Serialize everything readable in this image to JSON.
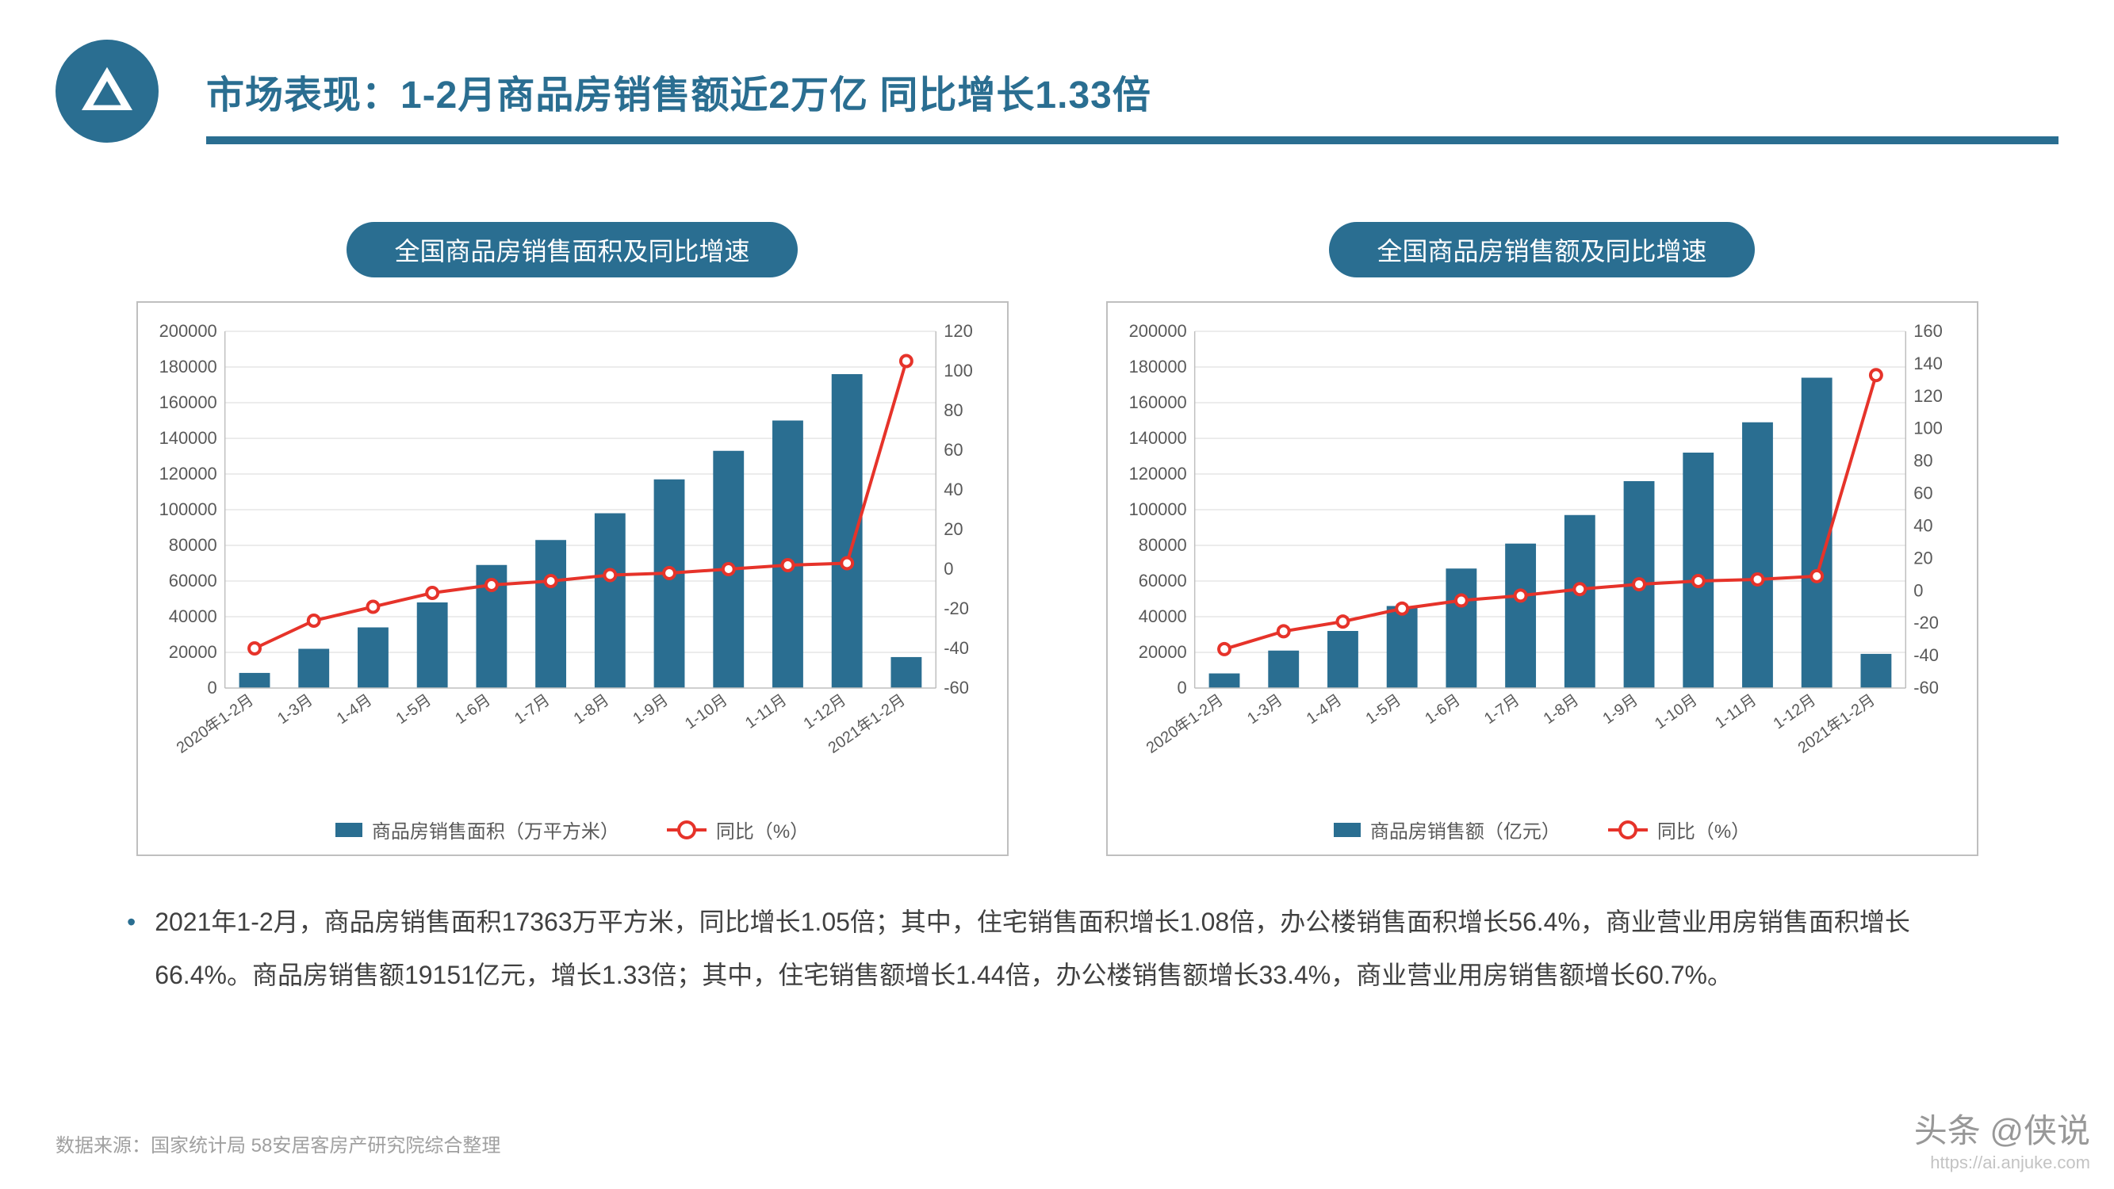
{
  "colors": {
    "brand": "#2a6e91",
    "accent_red": "#e6332a",
    "grid": "#d9d9d9",
    "axis": "#bfbfbf",
    "tick_text": "#595959",
    "body_text": "#404040",
    "footer_text": "#a0a0a0",
    "background": "#ffffff"
  },
  "title": "市场表现：1-2月商品房销售额近2万亿 同比增长1.33倍",
  "chart_left": {
    "title": "全国商品房销售面积及同比增速",
    "type": "bar+line",
    "x_labels": [
      "2020年1-2月",
      "1-3月",
      "1-4月",
      "1-5月",
      "1-6月",
      "1-7月",
      "1-8月",
      "1-9月",
      "1-10月",
      "1-11月",
      "1-12月",
      "2021年1-2月"
    ],
    "bars": [
      8475,
      22000,
      34000,
      48000,
      69000,
      83000,
      98000,
      117000,
      133000,
      150000,
      176000,
      17363
    ],
    "line": [
      -40,
      -26,
      -19,
      -12,
      -8,
      -6,
      -3,
      -2,
      0,
      2,
      3,
      105
    ],
    "bar_color": "#2a6e91",
    "line_color": "#e6332a",
    "marker_fill": "#ffffff",
    "y_left": {
      "min": 0,
      "max": 200000,
      "step": 20000
    },
    "y_right": {
      "min": -60,
      "max": 120,
      "step": 20
    },
    "legend_bar": "商品房销售面积（万平方米）",
    "legend_line": "同比（%）",
    "bar_width_ratio": 0.52,
    "line_width": 4,
    "marker_radius": 9,
    "tick_fontsize": 22,
    "x_tick_fontsize": 20
  },
  "chart_right": {
    "title": "全国商品房销售额及同比增速",
    "type": "bar+line",
    "x_labels": [
      "2020年1-2月",
      "1-3月",
      "1-4月",
      "1-5月",
      "1-6月",
      "1-7月",
      "1-8月",
      "1-9月",
      "1-10月",
      "1-11月",
      "1-12月",
      "2021年1-2月"
    ],
    "bars": [
      8200,
      21000,
      32000,
      46000,
      67000,
      81000,
      97000,
      116000,
      132000,
      149000,
      174000,
      19151
    ],
    "line": [
      -36,
      -25,
      -19,
      -11,
      -6,
      -3,
      1,
      4,
      6,
      7,
      9,
      133
    ],
    "bar_color": "#2a6e91",
    "line_color": "#e6332a",
    "marker_fill": "#ffffff",
    "y_left": {
      "min": 0,
      "max": 200000,
      "step": 20000
    },
    "y_right": {
      "min": -60,
      "max": 160,
      "step": 20
    },
    "legend_bar": "商品房销售额（亿元）",
    "legend_line": "同比（%）",
    "bar_width_ratio": 0.52,
    "line_width": 4,
    "marker_radius": 9,
    "tick_fontsize": 22,
    "x_tick_fontsize": 20
  },
  "body_text": "2021年1-2月，商品房销售面积17363万平方米，同比增长1.05倍；其中，住宅销售面积增长1.08倍，办公楼销售面积增长56.4%，商业营业用房销售面积增长66.4%。商品房销售额19151亿元，增长1.33倍；其中，住宅销售额增长1.44倍，办公楼销售额增长33.4%，商业营业用房销售额增长60.7%。",
  "footer": "数据来源：国家统计局 58安居客房产研究院综合整理",
  "watermark_top": "头条 @侠说",
  "watermark_url": "https://ai.anjuke.com"
}
